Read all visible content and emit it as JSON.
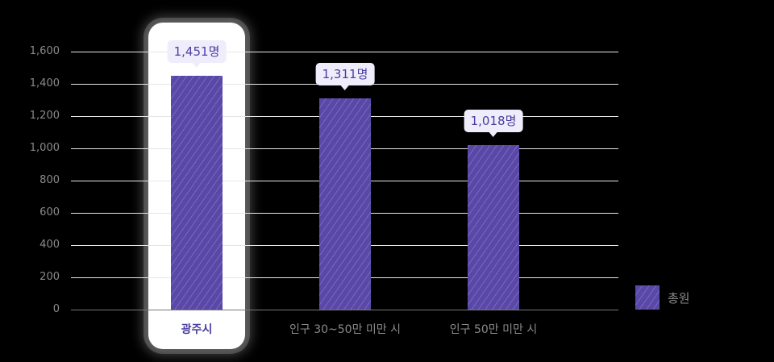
{
  "chart_data": {
    "type": "bar",
    "title": "",
    "xlabel": "",
    "ylabel": "",
    "categories": [
      "광주시",
      "인구 30~50만 미만 시",
      "인구 50만 미만 시"
    ],
    "series": [
      {
        "name": "총원",
        "values": [
          1451,
          1311,
          1018
        ],
        "color": "#5a48a8"
      }
    ],
    "value_labels": [
      "1,451명",
      "1,311명",
      "1,018명"
    ],
    "highlighted_category": "광주시",
    "ylim": [
      0,
      1600
    ],
    "yticks": [
      "0",
      "200",
      "400",
      "600",
      "800",
      "1,000",
      "1,200",
      "1,400",
      "1,600"
    ],
    "grid": true,
    "legend_position": "right-bottom"
  },
  "legend": {
    "label": "총원"
  }
}
